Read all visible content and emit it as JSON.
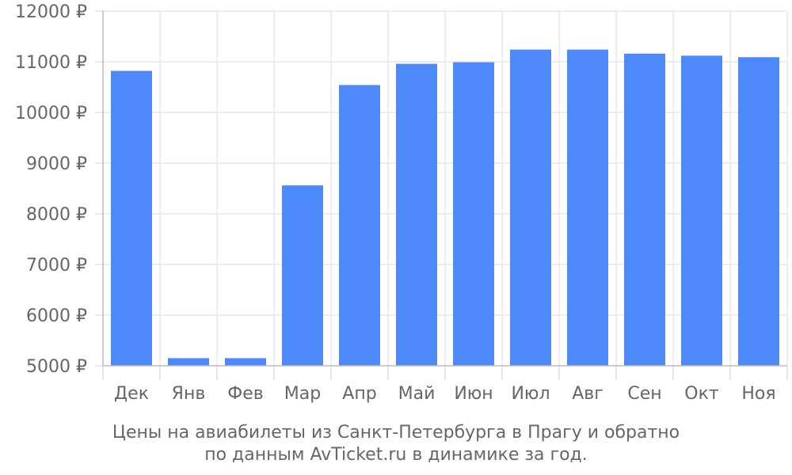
{
  "chart_data": {
    "type": "bar",
    "categories": [
      "Дек",
      "Янв",
      "Фев",
      "Мар",
      "Апр",
      "Май",
      "Июн",
      "Июл",
      "Авг",
      "Сен",
      "Окт",
      "Ноя"
    ],
    "values": [
      10820,
      5150,
      5150,
      8560,
      10540,
      10960,
      10990,
      11240,
      11240,
      11160,
      11120,
      11090
    ],
    "ylim": [
      5000,
      12000
    ],
    "yticks": [
      5000,
      6000,
      7000,
      8000,
      9000,
      10000,
      11000,
      12000
    ],
    "y_tick_suffix": " ₽",
    "grid": true,
    "bar_color": "#4d89f9",
    "caption": [
      "Цены на авиабилеты из Санкт-Петербурга в Прагу и обратно",
      "по данным AvTicket.ru в динамике за год."
    ]
  }
}
